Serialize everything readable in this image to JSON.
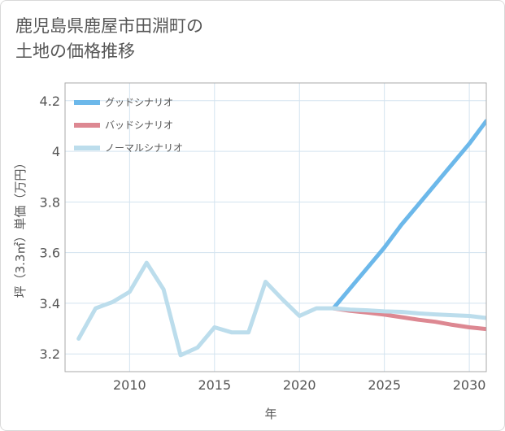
{
  "chart_data": {
    "type": "line",
    "title_lines": [
      "鹿児島県鹿屋市田淵町の",
      "土地の価格推移"
    ],
    "xlabel": "年",
    "ylabel": "坪（3.3㎡）単価（万円）",
    "xlim": [
      2006.2,
      2031
    ],
    "ylim": [
      3.13,
      4.27
    ],
    "x_ticks": [
      2010,
      2015,
      2020,
      2025,
      2030
    ],
    "x_tick_labels": [
      "2010",
      "2015",
      "2020",
      "2025",
      "2030"
    ],
    "y_ticks": [
      3.2,
      3.4,
      3.6,
      3.8,
      4.0,
      4.2
    ],
    "y_tick_labels": [
      "3.2",
      "3.4",
      "3.6",
      "3.8",
      "4",
      "4.2"
    ],
    "grid": true,
    "legend_position": "top-left",
    "series": [
      {
        "name": "グッドシナリオ",
        "color": "#6cb8ea",
        "x": [
          2022,
          2023,
          2024,
          2025,
          2026,
          2027,
          2028,
          2029,
          2030,
          2031
        ],
        "values": [
          3.38,
          3.46,
          3.54,
          3.62,
          3.71,
          3.79,
          3.87,
          3.95,
          4.03,
          4.12
        ]
      },
      {
        "name": "バッドシナリオ",
        "color": "#dd8892",
        "x": [
          2022,
          2023,
          2024,
          2025,
          2026,
          2027,
          2028,
          2029,
          2030,
          2031
        ],
        "values": [
          3.38,
          3.37,
          3.363,
          3.355,
          3.345,
          3.335,
          3.327,
          3.315,
          3.305,
          3.298
        ]
      },
      {
        "name": "ノーマルシナリオ",
        "color": "#bcddec",
        "x": [
          2007,
          2008,
          2009,
          2010,
          2011,
          2012,
          2013,
          2014,
          2015,
          2016,
          2017,
          2018,
          2019,
          2020,
          2021,
          2022,
          2023,
          2024,
          2025,
          2026,
          2027,
          2028,
          2029,
          2030,
          2031
        ],
        "values": [
          3.26,
          3.38,
          3.405,
          3.445,
          3.56,
          3.455,
          3.195,
          3.225,
          3.305,
          3.285,
          3.285,
          3.485,
          3.415,
          3.35,
          3.38,
          3.38,
          3.375,
          3.372,
          3.368,
          3.366,
          3.36,
          3.356,
          3.353,
          3.35,
          3.342
        ]
      }
    ]
  }
}
